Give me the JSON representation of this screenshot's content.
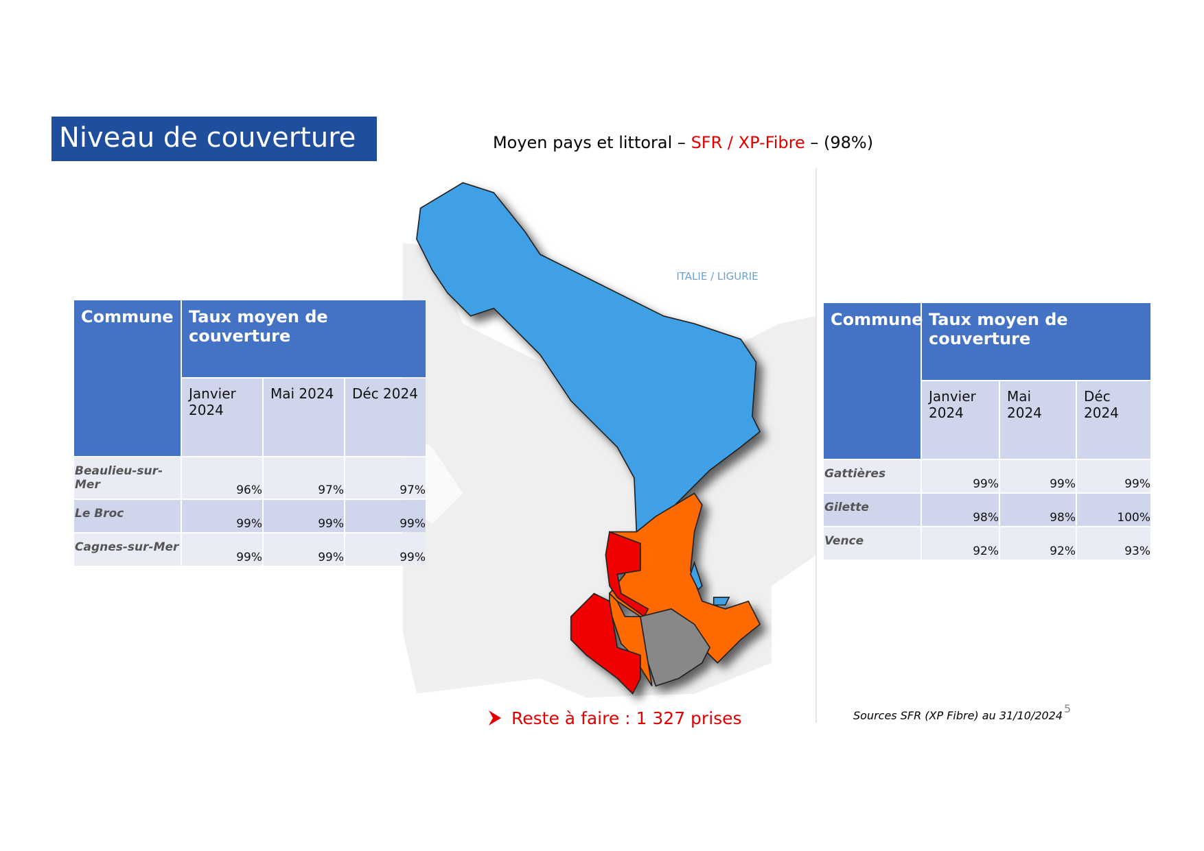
{
  "header": {
    "title": "Niveau de couverture"
  },
  "subtitle": {
    "parts": [
      "Moyen pays et littoral – ",
      "SFR / XP-Fibre",
      " – (98%)"
    ]
  },
  "map": {
    "label": "ITALIE / LIGURIE"
  },
  "tables": [
    {
      "headers": [
        "Commune",
        "Taux moyen de couverture"
      ],
      "periods": [
        "Janvier 2024",
        "Mai 2024",
        "Déc 2024"
      ],
      "rows": [
        [
          "Beaulieu-sur-Mer",
          "96%",
          "97%",
          "97%"
        ],
        [
          "Le Broc",
          "99%",
          "99%",
          "99%"
        ],
        [
          "Cagnes-sur-Mer",
          "99%",
          "99%",
          "99%"
        ]
      ]
    },
    {
      "headers": [
        "Commune",
        "Taux moyen de couverture"
      ],
      "periods": [
        "Janvier 2024",
        "Mai 2024",
        "Déc 2024"
      ],
      "rows": [
        [
          "Gattières",
          "99%",
          "99%",
          "99%"
        ],
        [
          "Gilette",
          "98%",
          "98%",
          "100%"
        ],
        [
          "Vence",
          "92%",
          "92%",
          "93%"
        ]
      ]
    }
  ],
  "note": "Reste à faire : 1 327 prises",
  "source": "Sources SFR (XP Fibre) au 31/10/2024",
  "page_number": "5"
}
